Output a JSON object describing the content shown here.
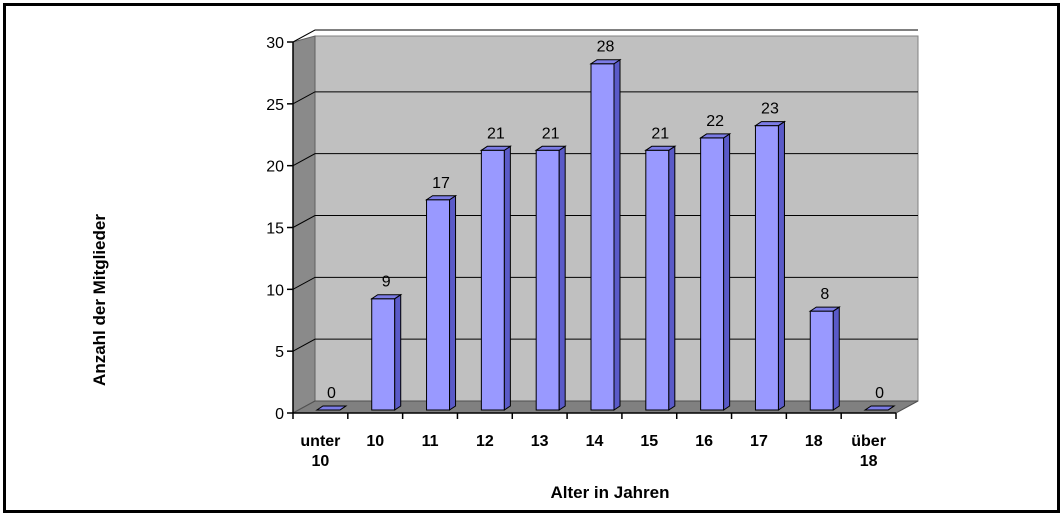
{
  "chart_data": {
    "type": "bar",
    "categories": [
      "unter 10",
      "10",
      "11",
      "12",
      "13",
      "14",
      "15",
      "16",
      "17",
      "18",
      "über 18"
    ],
    "values": [
      0,
      9,
      17,
      21,
      21,
      28,
      21,
      22,
      23,
      8,
      0
    ],
    "xlabel": "Alter in Jahren",
    "ylabel": "Anzahl der Mitglieder",
    "ylim": [
      0,
      30
    ],
    "yticks": [
      0,
      5,
      10,
      15,
      20,
      25,
      30
    ],
    "grid": true,
    "legend": "none",
    "colors": {
      "bar_front": "#9999FF",
      "bar_side": "#5A5AC8",
      "bar_top": "#7C7CE6",
      "wall": "#C0C0C0",
      "floor": "#808080"
    }
  }
}
